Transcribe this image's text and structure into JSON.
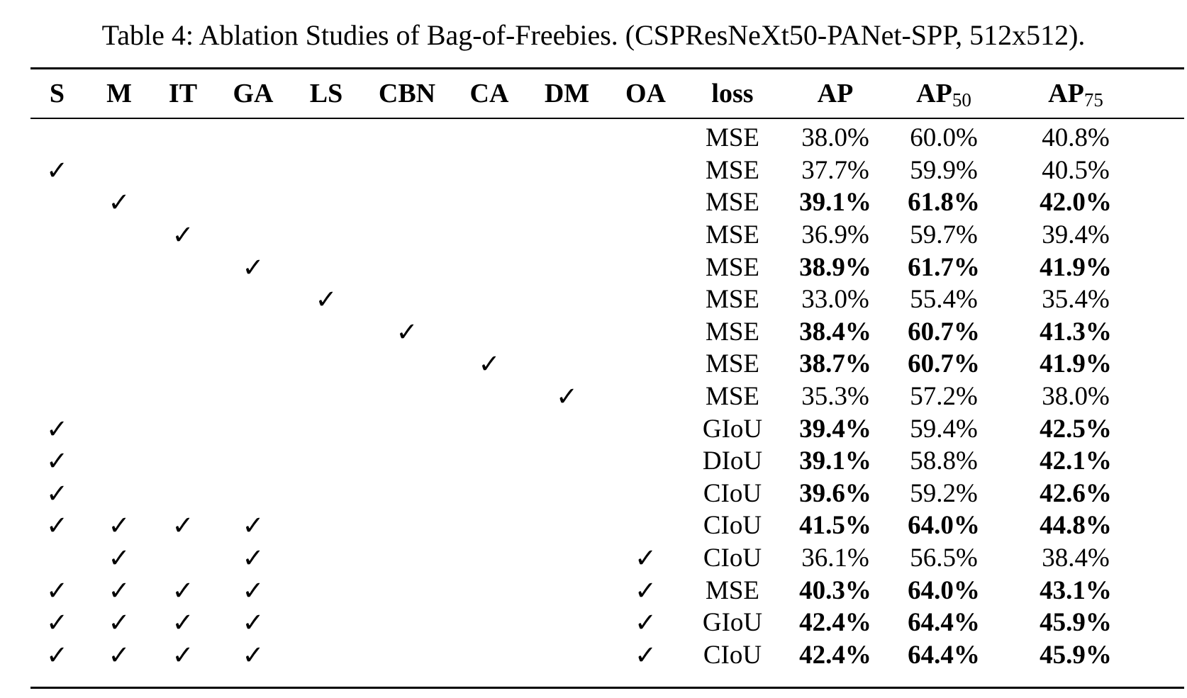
{
  "caption": "Table 4: Ablation Studies of Bag-of-Freebies. (CSPResNeXt50-PANet-SPP, 512x512).",
  "check_symbol": "✓",
  "columns": {
    "S": "S",
    "M": "M",
    "IT": "IT",
    "GA": "GA",
    "LS": "LS",
    "CBN": "CBN",
    "CA": "CA",
    "DM": "DM",
    "OA": "OA",
    "loss": "loss",
    "AP": "AP",
    "AP50_base": "AP",
    "AP50_sub": "50",
    "AP75_base": "AP",
    "AP75_sub": "75"
  },
  "rows": [
    {
      "flags": [],
      "loss": "MSE",
      "ap": "38.0%",
      "ap50": "60.0%",
      "ap75": "40.8%",
      "bold": []
    },
    {
      "flags": [
        "S"
      ],
      "loss": "MSE",
      "ap": "37.7%",
      "ap50": "59.9%",
      "ap75": "40.5%",
      "bold": []
    },
    {
      "flags": [
        "M"
      ],
      "loss": "MSE",
      "ap": "39.1%",
      "ap50": "61.8%",
      "ap75": "42.0%",
      "bold": [
        "ap",
        "ap50",
        "ap75"
      ]
    },
    {
      "flags": [
        "IT"
      ],
      "loss": "MSE",
      "ap": "36.9%",
      "ap50": "59.7%",
      "ap75": "39.4%",
      "bold": []
    },
    {
      "flags": [
        "GA"
      ],
      "loss": "MSE",
      "ap": "38.9%",
      "ap50": "61.7%",
      "ap75": "41.9%",
      "bold": [
        "ap",
        "ap50",
        "ap75"
      ]
    },
    {
      "flags": [
        "LS"
      ],
      "loss": "MSE",
      "ap": "33.0%",
      "ap50": "55.4%",
      "ap75": "35.4%",
      "bold": []
    },
    {
      "flags": [
        "CBN"
      ],
      "loss": "MSE",
      "ap": "38.4%",
      "ap50": "60.7%",
      "ap75": "41.3%",
      "bold": [
        "ap",
        "ap50",
        "ap75"
      ]
    },
    {
      "flags": [
        "CA"
      ],
      "loss": "MSE",
      "ap": "38.7%",
      "ap50": "60.7%",
      "ap75": "41.9%",
      "bold": [
        "ap",
        "ap50",
        "ap75"
      ]
    },
    {
      "flags": [
        "DM"
      ],
      "loss": "MSE",
      "ap": "35.3%",
      "ap50": "57.2%",
      "ap75": "38.0%",
      "bold": []
    },
    {
      "flags": [
        "S"
      ],
      "loss": "GIoU",
      "ap": "39.4%",
      "ap50": "59.4%",
      "ap75": "42.5%",
      "bold": [
        "ap",
        "ap75"
      ]
    },
    {
      "flags": [
        "S"
      ],
      "loss": "DIoU",
      "ap": "39.1%",
      "ap50": "58.8%",
      "ap75": "42.1%",
      "bold": [
        "ap",
        "ap75"
      ]
    },
    {
      "flags": [
        "S"
      ],
      "loss": "CIoU",
      "ap": "39.6%",
      "ap50": "59.2%",
      "ap75": "42.6%",
      "bold": [
        "ap",
        "ap75"
      ]
    },
    {
      "flags": [
        "S",
        "M",
        "IT",
        "GA"
      ],
      "loss": "CIoU",
      "ap": "41.5%",
      "ap50": "64.0%",
      "ap75": "44.8%",
      "bold": [
        "ap",
        "ap50",
        "ap75"
      ]
    },
    {
      "flags": [
        "M",
        "GA",
        "OA"
      ],
      "loss": "CIoU",
      "ap": "36.1%",
      "ap50": "56.5%",
      "ap75": "38.4%",
      "bold": []
    },
    {
      "flags": [
        "S",
        "M",
        "IT",
        "GA",
        "OA"
      ],
      "loss": "MSE",
      "ap": "40.3%",
      "ap50": "64.0%",
      "ap75": "43.1%",
      "bold": [
        "ap",
        "ap50",
        "ap75"
      ]
    },
    {
      "flags": [
        "S",
        "M",
        "IT",
        "GA",
        "OA"
      ],
      "loss": "GIoU",
      "ap": "42.4%",
      "ap50": "64.4%",
      "ap75": "45.9%",
      "bold": [
        "ap",
        "ap50",
        "ap75"
      ]
    },
    {
      "flags": [
        "S",
        "M",
        "IT",
        "GA",
        "OA"
      ],
      "loss": "CIoU",
      "ap": "42.4%",
      "ap50": "64.4%",
      "ap75": "45.9%",
      "bold": [
        "ap",
        "ap50",
        "ap75"
      ]
    }
  ]
}
